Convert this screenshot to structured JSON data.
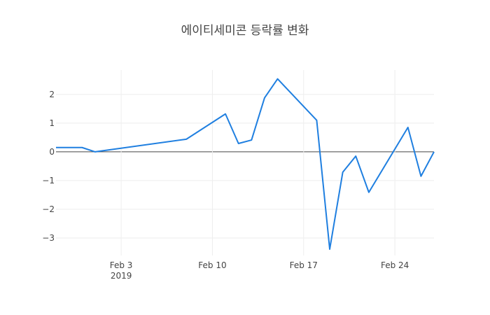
{
  "chart_data": {
    "type": "line",
    "title": "에이티세미콘 등락률 변화",
    "x": [
      "2019-01-29",
      "2019-01-31",
      "2019-02-01",
      "2019-02-08",
      "2019-02-11",
      "2019-02-12",
      "2019-02-13",
      "2019-02-14",
      "2019-02-15",
      "2019-02-18",
      "2019-02-19",
      "2019-02-20",
      "2019-02-21",
      "2019-02-22",
      "2019-02-25",
      "2019-02-26",
      "2019-02-27"
    ],
    "series": [
      {
        "color": "#1f7fe0",
        "values": [
          0.15,
          0.15,
          0,
          0.44,
          1.32,
          0.29,
          0.41,
          1.88,
          2.54,
          1.1,
          -3.39,
          -0.71,
          -0.15,
          -1.41,
          0.85,
          -0.85,
          0
        ]
      }
    ],
    "xlim": [
      "2019-01-29",
      "2019-02-27"
    ],
    "xticks": [
      {
        "value": "2019-02-03",
        "label": "Feb 3\n2019"
      },
      {
        "value": "2019-02-10",
        "label": "Feb 10"
      },
      {
        "value": "2019-02-17",
        "label": "Feb 17"
      },
      {
        "value": "2019-02-24",
        "label": "Feb 24"
      }
    ],
    "ylim": [
      -3.61,
      2.85
    ],
    "yticks": [
      {
        "value": -3,
        "label": "−3"
      },
      {
        "value": -2,
        "label": "−2"
      },
      {
        "value": -1,
        "label": "−1"
      },
      0,
      1,
      2
    ],
    "grid": true
  }
}
